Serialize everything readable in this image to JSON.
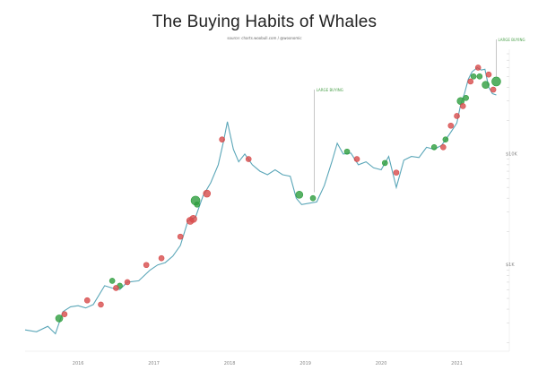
{
  "chart_data": {
    "type": "scatter",
    "title": "The Buying Habits of Whales",
    "subtitle": "source: charts.woobull.com / @woonomic",
    "xlabel": "",
    "ylabel": "",
    "yscale": "log",
    "grid": false,
    "legend": "none",
    "x_ticks": [
      "2016",
      "2017",
      "2018",
      "2019",
      "2020",
      "2021"
    ],
    "y_ticks": [
      "$10K",
      "$1K"
    ],
    "xlim": [
      2015.3,
      2021.55
    ],
    "ylim": [
      180,
      80000
    ],
    "price_line": {
      "name": "price",
      "color": "#5aa6b8",
      "x": [
        2015.3,
        2015.45,
        2015.6,
        2015.7,
        2015.8,
        2015.9,
        2016.0,
        2016.1,
        2016.2,
        2016.35,
        2016.45,
        2016.55,
        2016.65,
        2016.8,
        2016.95,
        2017.05,
        2017.15,
        2017.25,
        2017.35,
        2017.45,
        2017.55,
        2017.65,
        2017.75,
        2017.85,
        2017.92,
        2017.97,
        2018.05,
        2018.12,
        2018.2,
        2018.3,
        2018.4,
        2018.5,
        2018.6,
        2018.7,
        2018.8,
        2018.88,
        2018.95,
        2019.05,
        2019.15,
        2019.25,
        2019.35,
        2019.42,
        2019.5,
        2019.6,
        2019.7,
        2019.8,
        2019.9,
        2020.0,
        2020.1,
        2020.2,
        2020.3,
        2020.4,
        2020.5,
        2020.6,
        2020.7,
        2020.8,
        2020.9,
        2021.0,
        2021.05,
        2021.1,
        2021.15,
        2021.2,
        2021.27,
        2021.32,
        2021.37,
        2021.42,
        2021.47,
        2021.52
      ],
      "y": [
        260,
        250,
        280,
        240,
        380,
        420,
        430,
        410,
        440,
        650,
        620,
        600,
        700,
        720,
        900,
        1000,
        1050,
        1200,
        1500,
        2500,
        2700,
        4200,
        5500,
        8000,
        13000,
        19500,
        11000,
        8500,
        10000,
        8000,
        7000,
        6500,
        7200,
        6500,
        6300,
        4000,
        3500,
        3600,
        3700,
        5200,
        8500,
        12500,
        10000,
        10200,
        8000,
        8500,
        7500,
        7200,
        9500,
        5000,
        8800,
        9500,
        9300,
        11500,
        11000,
        12000,
        15000,
        19000,
        28000,
        35000,
        47000,
        55000,
        60000,
        57000,
        58000,
        40000,
        35000,
        34000
      ]
    },
    "series": [
      {
        "name": "buying",
        "color": "#2e9e3e",
        "x": [
          2015.75,
          2016.45,
          2016.55,
          2017.55,
          2017.57,
          2018.92,
          2019.1,
          2019.55,
          2020.05,
          2020.7,
          2020.85,
          2021.05,
          2021.12,
          2021.22,
          2021.3,
          2021.38,
          2021.52
        ],
        "y": [
          330,
          720,
          650,
          3800,
          3500,
          4300,
          4000,
          10500,
          8300,
          11500,
          13500,
          30000,
          32000,
          50000,
          50000,
          42000,
          45000
        ],
        "size": [
          4,
          3,
          3,
          5,
          3,
          4,
          3,
          3,
          3,
          3,
          3,
          4,
          3,
          3,
          3,
          4,
          5
        ]
      },
      {
        "name": "selling",
        "color": "#d74b4b",
        "x": [
          2015.82,
          2016.12,
          2016.3,
          2016.5,
          2016.65,
          2016.9,
          2017.1,
          2017.35,
          2017.48,
          2017.52,
          2017.7,
          2017.9,
          2018.25,
          2019.68,
          2020.2,
          2020.82,
          2020.92,
          2021.0,
          2021.08,
          2021.18,
          2021.28,
          2021.42,
          2021.48
        ],
        "y": [
          360,
          480,
          440,
          620,
          700,
          1000,
          1150,
          1800,
          2500,
          2600,
          4400,
          13500,
          9000,
          9000,
          6800,
          11500,
          18000,
          22000,
          27000,
          45000,
          60000,
          52000,
          38000
        ],
        "size": [
          3,
          3,
          3,
          3,
          3,
          3,
          3,
          3,
          4,
          4,
          4,
          3,
          3,
          3,
          3,
          3,
          3,
          3,
          3,
          3,
          3,
          3,
          3
        ]
      }
    ],
    "annotations": [
      {
        "text": "LARGE BUYING",
        "x": 2019.12,
        "y": 4200
      },
      {
        "text": "LARGE BUYING",
        "x": 2021.52,
        "y": 46000
      }
    ]
  }
}
